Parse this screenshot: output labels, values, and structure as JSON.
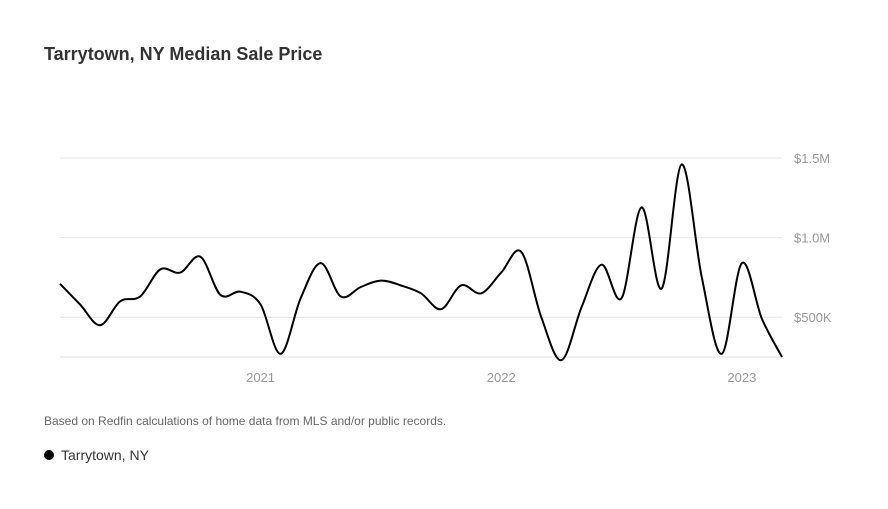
{
  "colors": {
    "line": "#000000",
    "grid": "#e4e4e4",
    "axis_text": "#999999",
    "title": "#333333"
  },
  "footnote": "Based on Redfin calculations of home data from MLS and/or public records.",
  "chart_data": {
    "type": "line",
    "title": "Tarrytown, NY Median Sale Price",
    "xlabel": "",
    "ylabel": "",
    "y_axis_position": "right",
    "x_range": [
      "2020-03",
      "2023-03"
    ],
    "ylim": [
      250000,
      1500000
    ],
    "y_ticks": [
      {
        "value": 500000,
        "label": "$500K"
      },
      {
        "value": 1000000,
        "label": "$1.0M"
      },
      {
        "value": 1500000,
        "label": "$1.5M"
      }
    ],
    "x_ticks": [
      {
        "value": "2021-01",
        "label": "2021"
      },
      {
        "value": "2022-01",
        "label": "2022"
      },
      {
        "value": "2023-01",
        "label": "2023"
      }
    ],
    "grid": true,
    "legend": {
      "placement": "bottom-left",
      "entries": [
        "Tarrytown, NY"
      ]
    },
    "series": [
      {
        "name": "Tarrytown, NY",
        "x": [
          "2020-03",
          "2020-04",
          "2020-05",
          "2020-06",
          "2020-07",
          "2020-08",
          "2020-09",
          "2020-10",
          "2020-11",
          "2020-12",
          "2021-01",
          "2021-02",
          "2021-03",
          "2021-04",
          "2021-05",
          "2021-06",
          "2021-07",
          "2021-08",
          "2021-09",
          "2021-10",
          "2021-11",
          "2021-12",
          "2022-01",
          "2022-02",
          "2022-03",
          "2022-04",
          "2022-05",
          "2022-06",
          "2022-07",
          "2022-08",
          "2022-09",
          "2022-10",
          "2022-11",
          "2022-12",
          "2023-01",
          "2023-02",
          "2023-03"
        ],
        "values": [
          710000,
          580000,
          450000,
          600000,
          630000,
          800000,
          780000,
          880000,
          640000,
          660000,
          580000,
          270000,
          620000,
          840000,
          630000,
          690000,
          730000,
          700000,
          650000,
          550000,
          700000,
          650000,
          780000,
          910000,
          500000,
          230000,
          560000,
          830000,
          620000,
          1190000,
          680000,
          1460000,
          750000,
          270000,
          840000,
          490000,
          250000
        ]
      }
    ]
  }
}
